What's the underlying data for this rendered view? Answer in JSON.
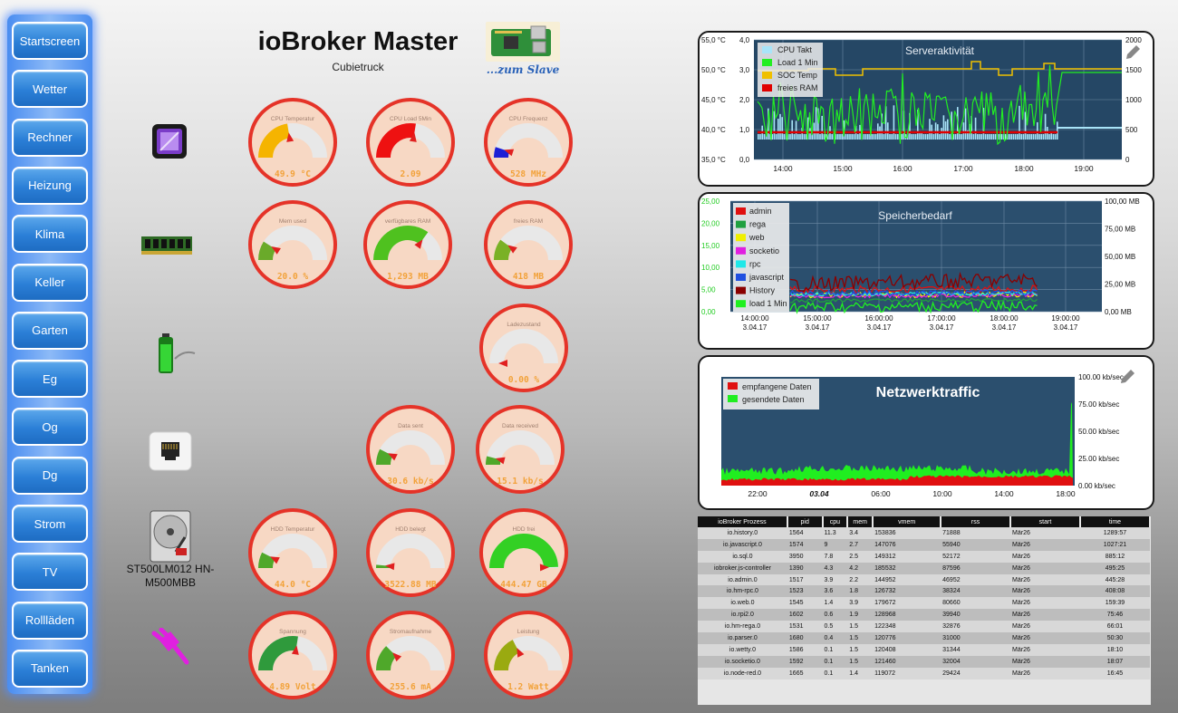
{
  "header": {
    "title": "ioBroker Master",
    "subtitle": "Cubietruck",
    "slave_link": "...zum Slave"
  },
  "nav": [
    "Startscreen",
    "Wetter",
    "Rechner",
    "Heizung",
    "Klima",
    "Keller",
    "Garten",
    "Eg",
    "Og",
    "Dg",
    "Strom",
    "TV",
    "Rollläden",
    "Tanken"
  ],
  "hdd": {
    "name_line1": "ST500LM012 HN-",
    "name_line2": "M500MBB"
  },
  "colors": {
    "ring": "#e53328",
    "face": "#f7d8c4",
    "track": "#e8e8e8",
    "value_text": "#f2a23a"
  },
  "gauges": [
    {
      "id": "cpu-temp",
      "label": "CPU Temperatur",
      "value": "49.9 °C",
      "level": 0.45,
      "color": "#f5b400",
      "x": 273,
      "y": 107
    },
    {
      "id": "cpu-load",
      "label": "CPU Load 5Min",
      "value": "2.09",
      "level": 0.55,
      "color": "#ee1111",
      "x": 403,
      "y": 107
    },
    {
      "id": "cpu-freq",
      "label": "CPU Frequenz",
      "value": "528 MHz",
      "level": 0.1,
      "color": "#1d1fd6",
      "x": 533,
      "y": 107
    },
    {
      "id": "mem-used",
      "label": "Mem used",
      "value": "20.0 %",
      "level": 0.18,
      "color": "#6aaa2a",
      "x": 273,
      "y": 220
    },
    {
      "id": "ram-avail",
      "label": "verfügbares RAM",
      "value": "1,293 MB",
      "level": 0.7,
      "color": "#4fc11f",
      "x": 400,
      "y": 220
    },
    {
      "id": "ram-free",
      "label": "freies RAM",
      "value": "418 MB",
      "level": 0.2,
      "color": "#7ab126",
      "x": 533,
      "y": 220
    },
    {
      "id": "charge",
      "label": "Ladezustand",
      "value": "0.00 %",
      "level": 0.0,
      "color": "#7ab126",
      "x": 528,
      "y": 334
    },
    {
      "id": "data-sent",
      "label": "Data sent",
      "value": "30.6 kb/s",
      "level": 0.15,
      "color": "#4fa82a",
      "x": 403,
      "y": 446
    },
    {
      "id": "data-recv",
      "label": "Data received",
      "value": "15.1 kb/s",
      "level": 0.08,
      "color": "#4fa82a",
      "x": 524,
      "y": 446
    },
    {
      "id": "hdd-temp",
      "label": "HDD Temperatur",
      "value": "44.0 °C",
      "level": 0.15,
      "color": "#4fa82a",
      "x": 273,
      "y": 560
    },
    {
      "id": "hdd-used",
      "label": "HDD belegt",
      "value": "3522.88 MB",
      "level": 0.03,
      "color": "#4fa82a",
      "x": 403,
      "y": 560
    },
    {
      "id": "hdd-free",
      "label": "HDD frei",
      "value": "444.47 GB",
      "level": 0.99,
      "color": "#33d024",
      "x": 528,
      "y": 560
    },
    {
      "id": "voltage",
      "label": "Spannung",
      "value": "4.89 Volt",
      "level": 0.55,
      "color": "#2f9a3c",
      "x": 273,
      "y": 673
    },
    {
      "id": "current",
      "label": "Stromaufnahme",
      "value": "255.6 mA",
      "level": 0.25,
      "color": "#4fa82a",
      "x": 403,
      "y": 673
    },
    {
      "id": "power",
      "label": "Leistung",
      "value": "1.2 Watt",
      "level": 0.35,
      "color": "#9aaa10",
      "x": 533,
      "y": 673
    }
  ],
  "chart_data": [
    {
      "type": "line",
      "title": "Serveraktivität",
      "x_ticks": [
        "14:00",
        "15:00",
        "16:00",
        "17:00",
        "18:00",
        "19:00"
      ],
      "y_left_temp": [
        "55,0 °C",
        "50,0 °C",
        "45,0 °C",
        "40,0 °C",
        "35,0 °C"
      ],
      "y_left_load": [
        "4,0",
        "3,0",
        "2,0",
        "1,0",
        "0,0"
      ],
      "y_right": [
        "2000",
        "1500",
        "1000",
        "500",
        "0"
      ],
      "series": [
        {
          "name": "CPU Takt",
          "color": "#a8e4f8"
        },
        {
          "name": "Load 1 Min",
          "color": "#22ee22"
        },
        {
          "name": "SOC Temp",
          "color": "#f0c000"
        },
        {
          "name": "freies RAM",
          "color": "#e00000"
        }
      ]
    },
    {
      "type": "line",
      "title": "Speicherbedarf",
      "x_ticks": [
        "14:00:00",
        "15:00:00",
        "16:00:00",
        "17:00:00",
        "18:00:00",
        "19:00:00"
      ],
      "x_ticks_2": [
        "3.04.17",
        "3.04.17",
        "3.04.17",
        "3.04.17",
        "3.04.17",
        "3.04.17"
      ],
      "y_left": [
        "25,00",
        "20,00",
        "15,00",
        "10,00",
        "5,00",
        "0,00"
      ],
      "y_right": [
        "100,00 MB",
        "75,00 MB",
        "50,00 MB",
        "25,00 MB",
        "0,00 MB"
      ],
      "series": [
        {
          "name": "admin",
          "color": "#e01010"
        },
        {
          "name": "rega",
          "color": "#20a040"
        },
        {
          "name": "web",
          "color": "#f0f000"
        },
        {
          "name": "socketio",
          "color": "#e020e0"
        },
        {
          "name": "rpc",
          "color": "#20e8e8"
        },
        {
          "name": "javascript",
          "color": "#2050e0"
        },
        {
          "name": "History",
          "color": "#8a0000"
        },
        {
          "name": "load 1 Min",
          "color": "#20f020"
        }
      ]
    },
    {
      "type": "area",
      "title": "Netzwerktraffic",
      "x_ticks": [
        "22:00",
        "03.04",
        "06:00",
        "10:00",
        "14:00",
        "18:00"
      ],
      "y_right": [
        "100.00 kb/sec",
        "75.00 kb/sec",
        "50.00 kb/sec",
        "25.00 kb/sec",
        "0.00 kb/sec"
      ],
      "series": [
        {
          "name": "empfangene Daten",
          "color": "#e01010"
        },
        {
          "name": "gesendete Daten",
          "color": "#20ee20"
        }
      ]
    }
  ],
  "process_table": {
    "columns": [
      "ioBroker Prozess",
      "pid",
      "cpu",
      "mem",
      "vmem",
      "rss",
      "start",
      "time"
    ],
    "rows": [
      [
        "io.history.0",
        "1564",
        "11.3",
        "3.4",
        "153836",
        "71888",
        "Mär26",
        "1289:57"
      ],
      [
        "io.javascript.0",
        "1574",
        "9",
        "2.7",
        "147076",
        "55940",
        "Mär26",
        "1027:21"
      ],
      [
        "io.sql.0",
        "3950",
        "7.8",
        "2.5",
        "149312",
        "52172",
        "Mär26",
        "885:12"
      ],
      [
        "iobroker.js-controller",
        "1390",
        "4.3",
        "4.2",
        "185532",
        "87596",
        "Mär26",
        "495:25"
      ],
      [
        "io.admin.0",
        "1517",
        "3.9",
        "2.2",
        "144952",
        "46952",
        "Mär26",
        "445:28"
      ],
      [
        "io.hm-rpc.0",
        "1523",
        "3.6",
        "1.8",
        "126732",
        "38324",
        "Mär26",
        "408:08"
      ],
      [
        "io.web.0",
        "1545",
        "1.4",
        "3.9",
        "179672",
        "80660",
        "Mär26",
        "159:39"
      ],
      [
        "io.rpi2.0",
        "1602",
        "0.6",
        "1.9",
        "128968",
        "39940",
        "Mär26",
        "75:46"
      ],
      [
        "io.hm-rega.0",
        "1531",
        "0.5",
        "1.5",
        "122348",
        "32876",
        "Mär26",
        "66:01"
      ],
      [
        "io.parser.0",
        "1680",
        "0.4",
        "1.5",
        "120776",
        "31000",
        "Mär26",
        "50:30"
      ],
      [
        "io.wetty.0",
        "1586",
        "0.1",
        "1.5",
        "120408",
        "31344",
        "Mär26",
        "18:10"
      ],
      [
        "io.socketio.0",
        "1592",
        "0.1",
        "1.5",
        "121460",
        "32004",
        "Mär26",
        "18:07"
      ],
      [
        "io.node-red.0",
        "1665",
        "0.1",
        "1.4",
        "119072",
        "29424",
        "Mär26",
        "16:45"
      ]
    ]
  }
}
